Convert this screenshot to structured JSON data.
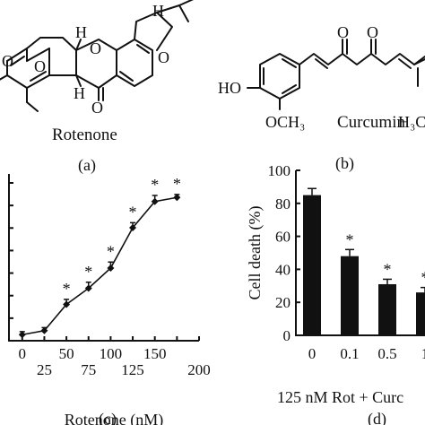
{
  "panels": {
    "a": {
      "caption": "(a)",
      "molecule_name": "Rotenone",
      "stereo_label": "H"
    },
    "b": {
      "caption": "(b)",
      "molecule_name": "Curcumin",
      "label_ho": "HO",
      "label_och3": "OCH₃",
      "label_h3c": "H₃C"
    },
    "c": {
      "caption": "(c)"
    },
    "d": {
      "caption": "(d)"
    }
  },
  "chart_data": [
    {
      "panel": "c",
      "type": "line",
      "title": "",
      "xlabel": "Rotenone (nM)",
      "ylabel": "",
      "x": [
        0,
        25,
        50,
        75,
        100,
        125,
        150,
        175
      ],
      "x_ticks": [
        0,
        25,
        50,
        75,
        100,
        125,
        150,
        175,
        200
      ],
      "x_tick_labels_top": [
        "0",
        "50",
        "100",
        "150"
      ],
      "x_tick_labels_bottom": [
        "25",
        "75",
        "125",
        "200"
      ],
      "xlim": [
        -15,
        200
      ],
      "y_tick_count": 7,
      "series": [
        {
          "values": [
            0.3,
            0.5,
            1.8,
            2.6,
            3.6,
            5.6,
            6.9,
            7.1
          ],
          "errors": [
            0.15,
            0.15,
            0.25,
            0.3,
            0.3,
            0.25,
            0.3,
            0.15
          ],
          "significant": [
            false,
            false,
            true,
            true,
            true,
            true,
            true,
            true
          ]
        }
      ],
      "ylim": [
        0,
        8
      ],
      "marker": "diamond",
      "significance_label": "*"
    },
    {
      "panel": "d",
      "type": "bar",
      "title": "",
      "ylabel": "Cell death (%)",
      "categories": [
        "0",
        "0.1",
        "0.5",
        "1"
      ],
      "group_label": "125 nM Rot + Curc",
      "values": [
        85,
        48,
        31,
        26
      ],
      "errors": [
        4,
        4,
        3,
        3
      ],
      "significant": [
        false,
        true,
        true,
        true
      ],
      "significance_label": "*",
      "ylim": [
        0,
        100
      ],
      "y_ticks": [
        0,
        20,
        40,
        60,
        80,
        100
      ],
      "bar_color": "#111111"
    }
  ]
}
